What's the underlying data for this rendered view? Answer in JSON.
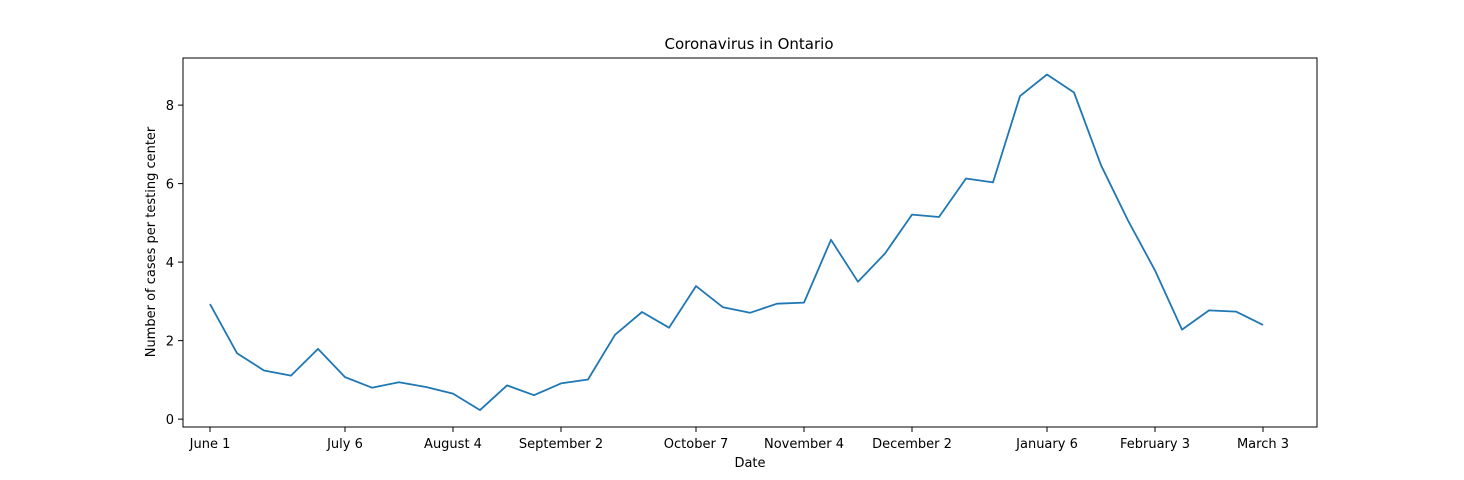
{
  "chart_data": {
    "type": "line",
    "title": "Coronavirus in Ontario",
    "xlabel": "Date",
    "ylabel": "Number of cases per testing center",
    "x_ticks": [
      {
        "index": 0,
        "label": "June 1"
      },
      {
        "index": 5,
        "label": "July 6"
      },
      {
        "index": 9,
        "label": "August 4"
      },
      {
        "index": 13,
        "label": "September 2"
      },
      {
        "index": 18,
        "label": "October 7"
      },
      {
        "index": 22,
        "label": "November 4"
      },
      {
        "index": 26,
        "label": "December 2"
      },
      {
        "index": 31,
        "label": "January 6"
      },
      {
        "index": 35,
        "label": "February 3"
      },
      {
        "index": 39,
        "label": "March 3"
      }
    ],
    "yticks": [
      0,
      2,
      4,
      6,
      8
    ],
    "ylim": [
      -0.2,
      9.2
    ],
    "xlim": [
      -1.0,
      41.0
    ],
    "grid": false,
    "series": [
      {
        "color": "#1f77b4",
        "values": [
          2.93,
          1.68,
          1.24,
          1.11,
          1.79,
          1.07,
          0.8,
          0.94,
          0.82,
          0.65,
          0.23,
          0.86,
          0.61,
          0.91,
          1.01,
          2.15,
          2.73,
          2.33,
          3.39,
          2.85,
          2.71,
          2.94,
          2.97,
          4.57,
          3.5,
          4.22,
          5.21,
          5.15,
          6.13,
          6.03,
          8.23,
          8.78,
          8.32,
          6.47,
          5.06,
          3.79,
          2.28,
          2.77,
          2.74,
          2.4
        ]
      }
    ]
  }
}
